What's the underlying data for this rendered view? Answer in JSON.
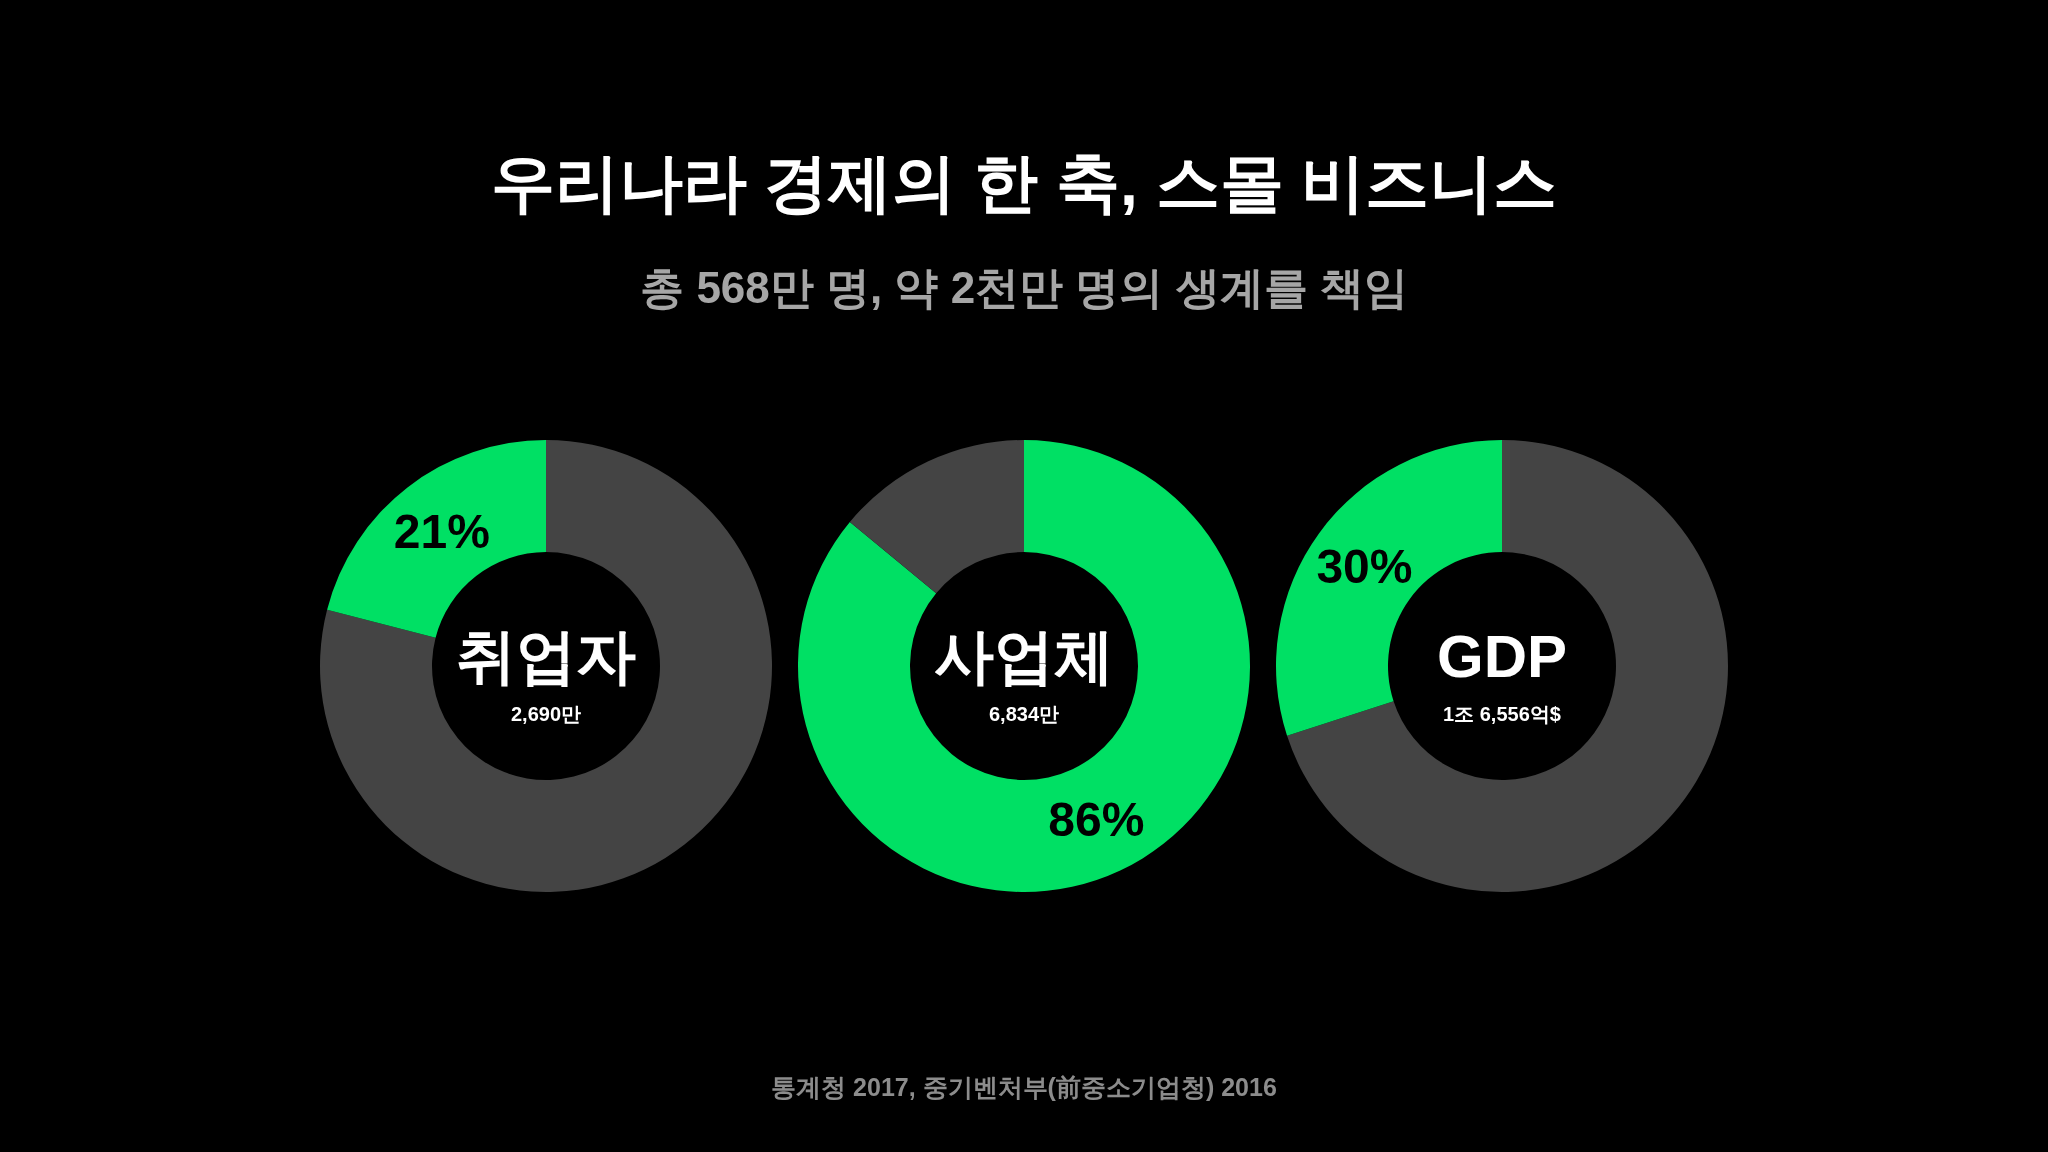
{
  "chart_data": [
    {
      "type": "other",
      "title": "우리나라 경제의 한 축, 스몰 비즈니스",
      "subtitle": "총 568만 명, 약 2천만 명의 생계를 책임",
      "annotations": [
        "통계청 2017, 중기벤처부(前중소기업청) 2016"
      ]
    },
    {
      "type": "donut",
      "title": "취업자",
      "subtitle": "2,690만",
      "categories": [
        null,
        null
      ],
      "values": [
        79,
        21
      ],
      "colors": [
        "#444444",
        "#00e064"
      ],
      "value_labels": [
        null,
        "21%"
      ]
    },
    {
      "type": "donut",
      "title": "사업체",
      "subtitle": "6,834만",
      "categories": [
        null,
        null
      ],
      "values": [
        86,
        14
      ],
      "colors": [
        "#00e064",
        "#444444"
      ],
      "value_labels": [
        "86%",
        null
      ]
    },
    {
      "type": "donut",
      "title": "GDP",
      "subtitle": "1조 6,556억$",
      "categories": [
        null,
        null
      ],
      "values": [
        70,
        30
      ],
      "colors": [
        "#444444",
        "#00e064"
      ],
      "value_labels": [
        null,
        "30%"
      ]
    }
  ]
}
